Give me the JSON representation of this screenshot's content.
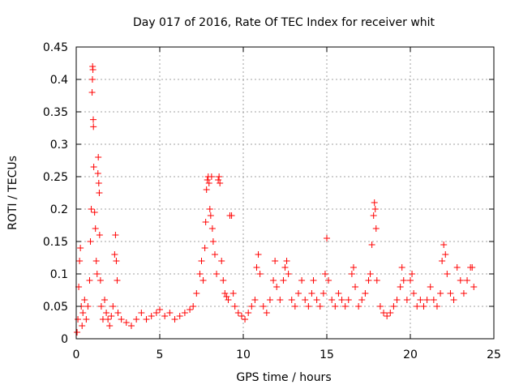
{
  "chart_data": {
    "type": "scatter",
    "title": "Day 017 of 2016, Rate Of TEC Index for receiver whit",
    "xlabel": "GPS time / hours",
    "ylabel": "ROTI / TECUs",
    "xlim": [
      0,
      25
    ],
    "ylim": [
      0,
      0.45
    ],
    "xticks": [
      0,
      5,
      10,
      15,
      20,
      25
    ],
    "xtick_labels": [
      "0",
      "5",
      "10",
      "15",
      "20",
      "25"
    ],
    "yticks": [
      0,
      0.05,
      0.1,
      0.15,
      0.2,
      0.25,
      0.3,
      0.35,
      0.4,
      0.45
    ],
    "ytick_labels": [
      "0",
      "0.05",
      "0.1",
      "0.15",
      "0.2",
      "0.25",
      "0.3",
      "0.35",
      "0.4",
      "0.45"
    ],
    "grid": true,
    "marker": "plus",
    "series": [
      {
        "name": "ROTI",
        "color": "#ff0000",
        "points": [
          [
            0.05,
            0.01
          ],
          [
            0.1,
            0.03
          ],
          [
            0.15,
            0.08
          ],
          [
            0.2,
            0.12
          ],
          [
            0.25,
            0.14
          ],
          [
            0.3,
            0.05
          ],
          [
            0.35,
            0.02
          ],
          [
            0.4,
            0.04
          ],
          [
            0.5,
            0.06
          ],
          [
            0.6,
            0.03
          ],
          [
            0.7,
            0.05
          ],
          [
            0.8,
            0.09
          ],
          [
            0.85,
            0.15
          ],
          [
            0.9,
            0.2
          ],
          [
            0.95,
            0.38
          ],
          [
            0.97,
            0.4
          ],
          [
            0.98,
            0.42
          ],
          [
            1.0,
            0.415
          ],
          [
            1.02,
            0.338
          ],
          [
            1.03,
            0.327
          ],
          [
            1.05,
            0.265
          ],
          [
            1.1,
            0.195
          ],
          [
            1.15,
            0.17
          ],
          [
            1.2,
            0.12
          ],
          [
            1.25,
            0.1
          ],
          [
            1.3,
            0.255
          ],
          [
            1.32,
            0.28
          ],
          [
            1.35,
            0.24
          ],
          [
            1.38,
            0.225
          ],
          [
            1.4,
            0.16
          ],
          [
            1.45,
            0.09
          ],
          [
            1.5,
            0.05
          ],
          [
            1.6,
            0.03
          ],
          [
            1.7,
            0.06
          ],
          [
            1.8,
            0.04
          ],
          [
            1.9,
            0.03
          ],
          [
            2.0,
            0.02
          ],
          [
            2.1,
            0.035
          ],
          [
            2.2,
            0.05
          ],
          [
            2.3,
            0.13
          ],
          [
            2.35,
            0.16
          ],
          [
            2.4,
            0.12
          ],
          [
            2.45,
            0.09
          ],
          [
            2.5,
            0.04
          ],
          [
            2.7,
            0.03
          ],
          [
            3.0,
            0.025
          ],
          [
            3.3,
            0.02
          ],
          [
            3.6,
            0.03
          ],
          [
            3.9,
            0.04
          ],
          [
            4.2,
            0.03
          ],
          [
            4.5,
            0.035
          ],
          [
            4.8,
            0.04
          ],
          [
            5.0,
            0.045
          ],
          [
            5.3,
            0.035
          ],
          [
            5.6,
            0.04
          ],
          [
            5.9,
            0.03
          ],
          [
            6.2,
            0.035
          ],
          [
            6.5,
            0.04
          ],
          [
            6.8,
            0.045
          ],
          [
            7.0,
            0.05
          ],
          [
            7.2,
            0.07
          ],
          [
            7.4,
            0.1
          ],
          [
            7.5,
            0.12
          ],
          [
            7.6,
            0.09
          ],
          [
            7.7,
            0.14
          ],
          [
            7.75,
            0.18
          ],
          [
            7.8,
            0.23
          ],
          [
            7.85,
            0.245
          ],
          [
            7.9,
            0.25
          ],
          [
            7.95,
            0.24
          ],
          [
            8.0,
            0.2
          ],
          [
            8.05,
            0.19
          ],
          [
            8.1,
            0.25
          ],
          [
            8.15,
            0.17
          ],
          [
            8.2,
            0.15
          ],
          [
            8.3,
            0.13
          ],
          [
            8.4,
            0.1
          ],
          [
            8.5,
            0.245
          ],
          [
            8.55,
            0.25
          ],
          [
            8.6,
            0.24
          ],
          [
            8.7,
            0.12
          ],
          [
            8.8,
            0.09
          ],
          [
            8.9,
            0.07
          ],
          [
            9.0,
            0.065
          ],
          [
            9.1,
            0.06
          ],
          [
            9.2,
            0.19
          ],
          [
            9.3,
            0.19
          ],
          [
            9.4,
            0.07
          ],
          [
            9.5,
            0.05
          ],
          [
            9.7,
            0.04
          ],
          [
            9.9,
            0.035
          ],
          [
            10.1,
            0.03
          ],
          [
            10.3,
            0.04
          ],
          [
            10.5,
            0.05
          ],
          [
            10.7,
            0.06
          ],
          [
            10.8,
            0.11
          ],
          [
            10.9,
            0.13
          ],
          [
            11.0,
            0.1
          ],
          [
            11.2,
            0.05
          ],
          [
            11.4,
            0.04
          ],
          [
            11.6,
            0.06
          ],
          [
            11.8,
            0.09
          ],
          [
            11.9,
            0.12
          ],
          [
            12.0,
            0.08
          ],
          [
            12.2,
            0.06
          ],
          [
            12.4,
            0.09
          ],
          [
            12.5,
            0.11
          ],
          [
            12.6,
            0.12
          ],
          [
            12.7,
            0.1
          ],
          [
            12.9,
            0.06
          ],
          [
            13.1,
            0.05
          ],
          [
            13.3,
            0.07
          ],
          [
            13.5,
            0.09
          ],
          [
            13.7,
            0.06
          ],
          [
            13.9,
            0.05
          ],
          [
            14.1,
            0.07
          ],
          [
            14.2,
            0.09
          ],
          [
            14.4,
            0.06
          ],
          [
            14.6,
            0.05
          ],
          [
            14.8,
            0.07
          ],
          [
            14.9,
            0.1
          ],
          [
            15.0,
            0.155
          ],
          [
            15.1,
            0.09
          ],
          [
            15.3,
            0.06
          ],
          [
            15.5,
            0.05
          ],
          [
            15.7,
            0.07
          ],
          [
            15.9,
            0.06
          ],
          [
            16.1,
            0.05
          ],
          [
            16.3,
            0.06
          ],
          [
            16.5,
            0.1
          ],
          [
            16.6,
            0.11
          ],
          [
            16.7,
            0.08
          ],
          [
            16.9,
            0.05
          ],
          [
            17.1,
            0.06
          ],
          [
            17.3,
            0.07
          ],
          [
            17.5,
            0.09
          ],
          [
            17.6,
            0.1
          ],
          [
            17.7,
            0.145
          ],
          [
            17.8,
            0.19
          ],
          [
            17.85,
            0.21
          ],
          [
            17.9,
            0.2
          ],
          [
            17.95,
            0.17
          ],
          [
            18.0,
            0.09
          ],
          [
            18.2,
            0.05
          ],
          [
            18.4,
            0.04
          ],
          [
            18.6,
            0.035
          ],
          [
            18.8,
            0.04
          ],
          [
            19.0,
            0.05
          ],
          [
            19.2,
            0.06
          ],
          [
            19.4,
            0.08
          ],
          [
            19.5,
            0.11
          ],
          [
            19.6,
            0.09
          ],
          [
            19.8,
            0.06
          ],
          [
            20.0,
            0.09
          ],
          [
            20.1,
            0.1
          ],
          [
            20.2,
            0.07
          ],
          [
            20.4,
            0.05
          ],
          [
            20.6,
            0.06
          ],
          [
            20.8,
            0.05
          ],
          [
            21.0,
            0.06
          ],
          [
            21.2,
            0.08
          ],
          [
            21.4,
            0.06
          ],
          [
            21.6,
            0.05
          ],
          [
            21.8,
            0.07
          ],
          [
            21.9,
            0.12
          ],
          [
            22.0,
            0.145
          ],
          [
            22.1,
            0.13
          ],
          [
            22.2,
            0.1
          ],
          [
            22.4,
            0.07
          ],
          [
            22.6,
            0.06
          ],
          [
            22.8,
            0.11
          ],
          [
            23.0,
            0.09
          ],
          [
            23.2,
            0.07
          ],
          [
            23.4,
            0.09
          ],
          [
            23.6,
            0.11
          ],
          [
            23.7,
            0.11
          ],
          [
            23.8,
            0.08
          ]
        ]
      }
    ]
  }
}
